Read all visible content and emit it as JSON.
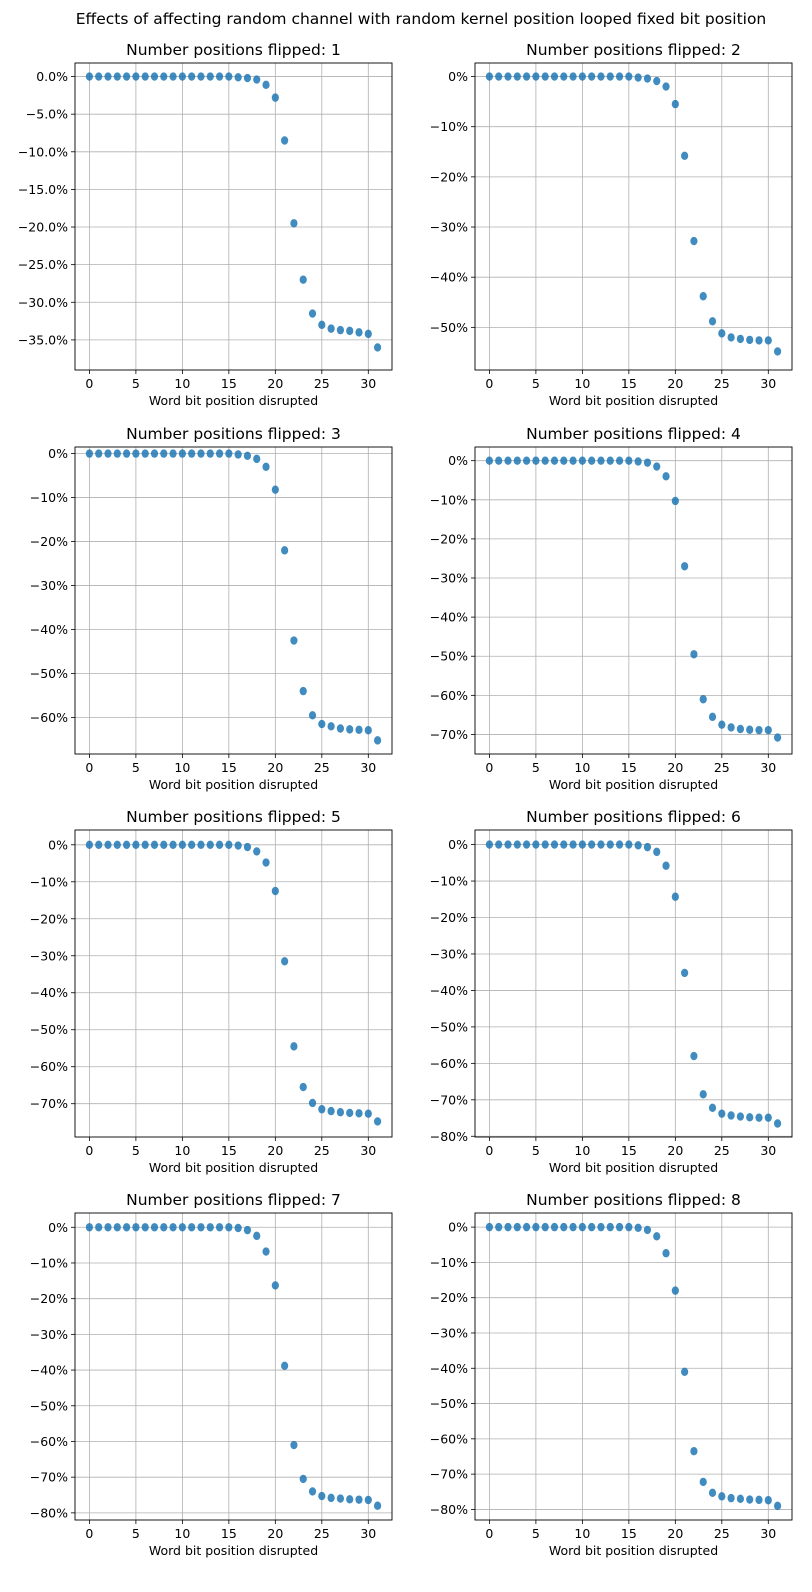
{
  "suptitle": "Effects of affecting random channel with random kernel position looped fixed bit position",
  "colors": {
    "marker": "#1f77b4",
    "grid": "#b0b0b0",
    "axis": "#000000"
  },
  "chart_data": [
    {
      "type": "scatter",
      "title": "Number positions flipped: 1",
      "xlabel": "Word bit position disrupted",
      "ylabel": "",
      "x_ticks": [
        0,
        5,
        10,
        15,
        20,
        25,
        30
      ],
      "y_ticks": [
        0,
        -5,
        -10,
        -15,
        -20,
        -25,
        -30,
        -35
      ],
      "y_tick_labels": [
        "0.0%",
        "−5.0%",
        "−10.0%",
        "−15.0%",
        "−20.0%",
        "−25.0%",
        "−30.0%",
        "−35.0%"
      ],
      "xlim": [
        -1.55,
        32.55
      ],
      "ylim": [
        -39.0,
        1.8
      ],
      "grid": true,
      "x": [
        0,
        1,
        2,
        3,
        4,
        5,
        6,
        7,
        8,
        9,
        10,
        11,
        12,
        13,
        14,
        15,
        16,
        17,
        18,
        19,
        20,
        21,
        22,
        23,
        24,
        25,
        26,
        27,
        28,
        29,
        30,
        31
      ],
      "y": [
        0,
        0,
        0,
        0,
        0,
        0,
        0,
        0,
        0,
        0,
        0,
        0,
        0,
        0,
        0,
        0,
        -0.1,
        -0.2,
        -0.4,
        -1.1,
        -2.8,
        -8.5,
        -19.5,
        -27.0,
        -31.5,
        -33.0,
        -33.5,
        -33.7,
        -33.8,
        -34.0,
        -34.2,
        -36.0
      ]
    },
    {
      "type": "scatter",
      "title": "Number positions flipped: 2",
      "xlabel": "Word bit position disrupted",
      "ylabel": "",
      "x_ticks": [
        0,
        5,
        10,
        15,
        20,
        25,
        30
      ],
      "y_ticks": [
        0,
        -10,
        -20,
        -30,
        -40,
        -50
      ],
      "y_tick_labels": [
        "0%",
        "−10%",
        "−20%",
        "−30%",
        "−40%",
        "−50%"
      ],
      "xlim": [
        -1.55,
        32.55
      ],
      "ylim": [
        -58.5,
        2.7
      ],
      "grid": true,
      "x": [
        0,
        1,
        2,
        3,
        4,
        5,
        6,
        7,
        8,
        9,
        10,
        11,
        12,
        13,
        14,
        15,
        16,
        17,
        18,
        19,
        20,
        21,
        22,
        23,
        24,
        25,
        26,
        27,
        28,
        29,
        30,
        31
      ],
      "y": [
        0,
        0,
        0,
        0,
        0,
        0,
        0,
        0,
        0,
        0,
        0,
        0,
        0,
        0,
        0,
        0,
        -0.2,
        -0.4,
        -0.9,
        -2.0,
        -5.5,
        -15.8,
        -32.8,
        -43.8,
        -48.8,
        -51.2,
        -52.0,
        -52.3,
        -52.5,
        -52.6,
        -52.6,
        -54.8
      ]
    },
    {
      "type": "scatter",
      "title": "Number positions flipped: 3",
      "xlabel": "Word bit position disrupted",
      "ylabel": "",
      "x_ticks": [
        0,
        5,
        10,
        15,
        20,
        25,
        30
      ],
      "y_ticks": [
        0,
        -10,
        -20,
        -30,
        -40,
        -50,
        -60
      ],
      "y_tick_labels": [
        "0%",
        "−10%",
        "−20%",
        "−30%",
        "−40%",
        "−50%",
        "−60%"
      ],
      "xlim": [
        -1.55,
        32.55
      ],
      "ylim": [
        -68.3,
        1.5
      ],
      "grid": true,
      "x": [
        0,
        1,
        2,
        3,
        4,
        5,
        6,
        7,
        8,
        9,
        10,
        11,
        12,
        13,
        14,
        15,
        16,
        17,
        18,
        19,
        20,
        21,
        22,
        23,
        24,
        25,
        26,
        27,
        28,
        29,
        30,
        31
      ],
      "y": [
        0,
        0,
        0,
        0,
        0,
        0,
        0,
        0,
        0,
        0,
        0,
        0,
        0,
        0,
        0,
        0,
        -0.2,
        -0.5,
        -1.2,
        -3.0,
        -8.2,
        -22.0,
        -42.5,
        -54.0,
        -59.5,
        -61.5,
        -62.0,
        -62.5,
        -62.7,
        -62.8,
        -62.9,
        -65.2
      ]
    },
    {
      "type": "scatter",
      "title": "Number positions flipped: 4",
      "xlabel": "Word bit position disrupted",
      "ylabel": "",
      "x_ticks": [
        0,
        5,
        10,
        15,
        20,
        25,
        30
      ],
      "y_ticks": [
        0,
        -10,
        -20,
        -30,
        -40,
        -50,
        -60,
        -70
      ],
      "y_tick_labels": [
        "0%",
        "−10%",
        "−20%",
        "−30%",
        "−40%",
        "−50%",
        "−60%",
        "−70%"
      ],
      "xlim": [
        -1.55,
        32.55
      ],
      "ylim": [
        -75.0,
        3.5
      ],
      "grid": true,
      "x": [
        0,
        1,
        2,
        3,
        4,
        5,
        6,
        7,
        8,
        9,
        10,
        11,
        12,
        13,
        14,
        15,
        16,
        17,
        18,
        19,
        20,
        21,
        22,
        23,
        24,
        25,
        26,
        27,
        28,
        29,
        30,
        31
      ],
      "y": [
        0,
        0,
        0,
        0,
        0,
        0,
        0,
        0,
        0,
        0,
        0,
        0,
        0,
        0,
        0,
        0,
        -0.2,
        -0.5,
        -1.5,
        -4.0,
        -10.3,
        -27.0,
        -49.5,
        -61.0,
        -65.5,
        -67.5,
        -68.2,
        -68.6,
        -68.8,
        -68.9,
        -68.9,
        -70.8
      ]
    },
    {
      "type": "scatter",
      "title": "Number positions flipped: 5",
      "xlabel": "Word bit position disrupted",
      "ylabel": "",
      "x_ticks": [
        0,
        5,
        10,
        15,
        20,
        25,
        30
      ],
      "y_ticks": [
        0,
        -10,
        -20,
        -30,
        -40,
        -50,
        -60,
        -70
      ],
      "y_tick_labels": [
        "0%",
        "−10%",
        "−20%",
        "−30%",
        "−40%",
        "−50%",
        "−60%",
        "−70%"
      ],
      "xlim": [
        -1.55,
        32.55
      ],
      "ylim": [
        -79.0,
        4.0
      ],
      "grid": true,
      "x": [
        0,
        1,
        2,
        3,
        4,
        5,
        6,
        7,
        8,
        9,
        10,
        11,
        12,
        13,
        14,
        15,
        16,
        17,
        18,
        19,
        20,
        21,
        22,
        23,
        24,
        25,
        26,
        27,
        28,
        29,
        30,
        31
      ],
      "y": [
        0,
        0,
        0,
        0,
        0,
        0,
        0,
        0,
        0,
        0,
        0,
        0,
        0,
        0,
        0,
        0,
        -0.2,
        -0.6,
        -1.8,
        -4.8,
        -12.5,
        -31.5,
        -54.5,
        -65.5,
        -69.8,
        -71.5,
        -72.0,
        -72.3,
        -72.5,
        -72.6,
        -72.7,
        -74.8
      ]
    },
    {
      "type": "scatter",
      "title": "Number positions flipped: 6",
      "xlabel": "Word bit position disrupted",
      "ylabel": "",
      "x_ticks": [
        0,
        5,
        10,
        15,
        20,
        25,
        30
      ],
      "y_ticks": [
        0,
        -10,
        -20,
        -30,
        -40,
        -50,
        -60,
        -70,
        -80
      ],
      "y_tick_labels": [
        "0%",
        "−10%",
        "−20%",
        "−30%",
        "−40%",
        "−50%",
        "−60%",
        "−70%",
        "−80%"
      ],
      "xlim": [
        -1.55,
        32.55
      ],
      "ylim": [
        -80.2,
        4.0
      ],
      "grid": true,
      "x": [
        0,
        1,
        2,
        3,
        4,
        5,
        6,
        7,
        8,
        9,
        10,
        11,
        12,
        13,
        14,
        15,
        16,
        17,
        18,
        19,
        20,
        21,
        22,
        23,
        24,
        25,
        26,
        27,
        28,
        29,
        30,
        31
      ],
      "y": [
        0,
        0,
        0,
        0,
        0,
        0,
        0,
        0,
        0,
        0,
        0,
        0,
        0,
        0,
        0,
        0,
        -0.2,
        -0.7,
        -2.0,
        -5.8,
        -14.3,
        -35.2,
        -58.0,
        -68.5,
        -72.2,
        -73.8,
        -74.3,
        -74.6,
        -74.8,
        -74.9,
        -74.9,
        -76.5
      ]
    },
    {
      "type": "scatter",
      "title": "Number positions flipped: 7",
      "xlabel": "Word bit position disrupted",
      "ylabel": "",
      "x_ticks": [
        0,
        5,
        10,
        15,
        20,
        25,
        30
      ],
      "y_ticks": [
        0,
        -10,
        -20,
        -30,
        -40,
        -50,
        -60,
        -70,
        -80
      ],
      "y_tick_labels": [
        "0%",
        "−10%",
        "−20%",
        "−30%",
        "−40%",
        "−50%",
        "−60%",
        "−70%",
        "−80%"
      ],
      "xlim": [
        -1.55,
        32.55
      ],
      "ylim": [
        -82.0,
        4.0
      ],
      "grid": true,
      "x": [
        0,
        1,
        2,
        3,
        4,
        5,
        6,
        7,
        8,
        9,
        10,
        11,
        12,
        13,
        14,
        15,
        16,
        17,
        18,
        19,
        20,
        21,
        22,
        23,
        24,
        25,
        26,
        27,
        28,
        29,
        30,
        31
      ],
      "y": [
        0,
        0,
        0,
        0,
        0,
        0,
        0,
        0,
        0,
        0,
        0,
        0,
        0,
        0,
        0,
        0,
        -0.2,
        -0.8,
        -2.4,
        -6.8,
        -16.3,
        -38.8,
        -61.0,
        -70.5,
        -74.0,
        -75.3,
        -75.8,
        -76.0,
        -76.2,
        -76.3,
        -76.4,
        -78.0
      ]
    },
    {
      "type": "scatter",
      "title": "Number positions flipped: 8",
      "xlabel": "Word bit position disrupted",
      "ylabel": "",
      "x_ticks": [
        0,
        5,
        10,
        15,
        20,
        25,
        30
      ],
      "y_ticks": [
        0,
        -10,
        -20,
        -30,
        -40,
        -50,
        -60,
        -70,
        -80
      ],
      "y_tick_labels": [
        "0%",
        "−10%",
        "−20%",
        "−30%",
        "−40%",
        "−50%",
        "−60%",
        "−70%",
        "−80%"
      ],
      "xlim": [
        -1.55,
        32.55
      ],
      "ylim": [
        -83.0,
        4.0
      ],
      "grid": true,
      "x": [
        0,
        1,
        2,
        3,
        4,
        5,
        6,
        7,
        8,
        9,
        10,
        11,
        12,
        13,
        14,
        15,
        16,
        17,
        18,
        19,
        20,
        21,
        22,
        23,
        24,
        25,
        26,
        27,
        28,
        29,
        30,
        31
      ],
      "y": [
        0,
        0,
        0,
        0,
        0,
        0,
        0,
        0,
        0,
        0,
        0,
        0,
        0,
        0,
        0,
        0,
        -0.2,
        -0.8,
        -2.6,
        -7.4,
        -18.0,
        -41.0,
        -63.5,
        -72.2,
        -75.3,
        -76.3,
        -76.8,
        -77.0,
        -77.2,
        -77.3,
        -77.4,
        -79.0
      ]
    }
  ]
}
